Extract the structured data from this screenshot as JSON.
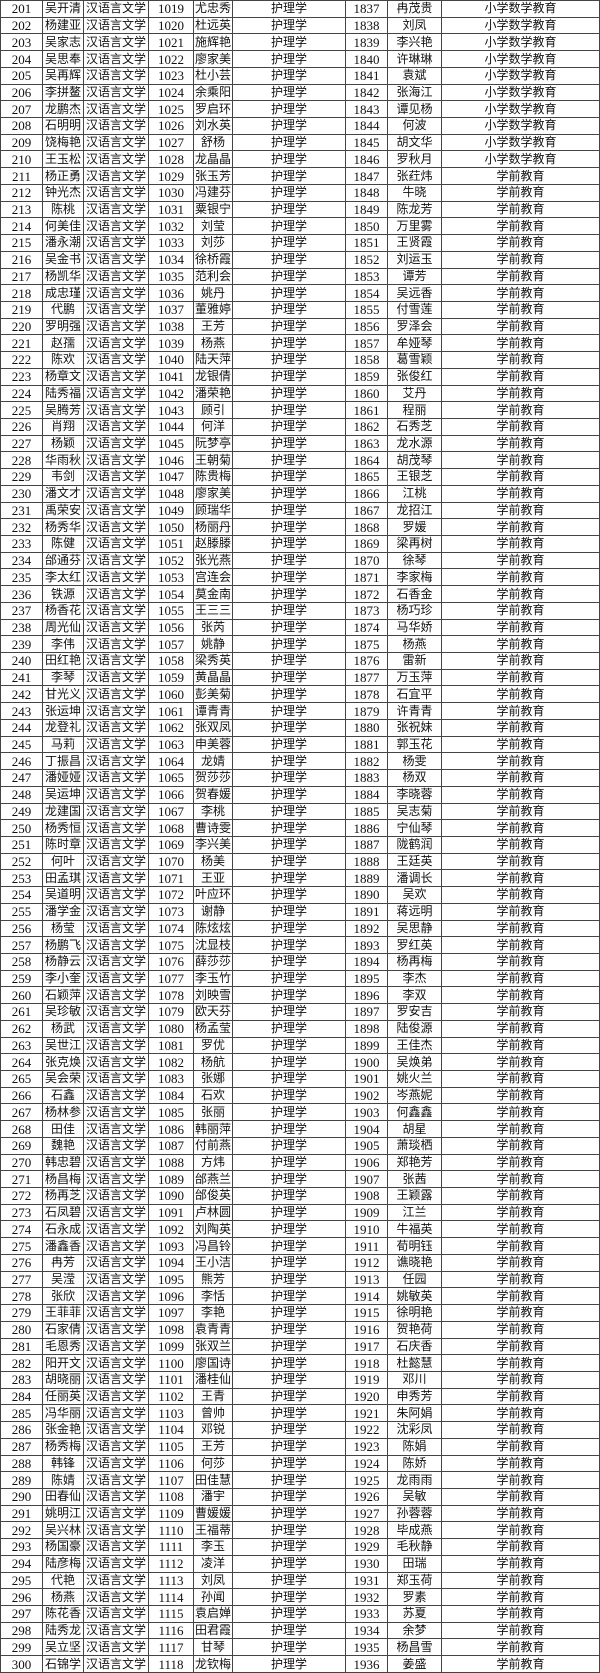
{
  "table": {
    "rows": [
      [
        "201",
        "吴开清",
        "汉语言文学",
        "1019",
        "尤忠秀",
        "护理学",
        "1837",
        "冉茂贵",
        "小学数学教育"
      ],
      [
        "202",
        "杨建亚",
        "汉语言文学",
        "1020",
        "杜远英",
        "护理学",
        "1838",
        "刘凤",
        "小学数学教育"
      ],
      [
        "203",
        "吴家志",
        "汉语言文学",
        "1021",
        "施辉艳",
        "护理学",
        "1839",
        "李兴艳",
        "小学数学教育"
      ],
      [
        "204",
        "吴思奉",
        "汉语言文学",
        "1022",
        "廖家美",
        "护理学",
        "1840",
        "许琳琳",
        "小学数学教育"
      ],
      [
        "205",
        "吴再辉",
        "汉语言文学",
        "1023",
        "杜小芸",
        "护理学",
        "1841",
        "袁斌",
        "小学数学教育"
      ],
      [
        "206",
        "李拼鳌",
        "汉语言文学",
        "1024",
        "余乘阳",
        "护理学",
        "1842",
        "张海江",
        "小学数学教育"
      ],
      [
        "207",
        "龙鹏杰",
        "汉语言文学",
        "1025",
        "罗启环",
        "护理学",
        "1843",
        "谭见杨",
        "小学数学教育"
      ],
      [
        "208",
        "石明明",
        "汉语言文学",
        "1026",
        "刘水英",
        "护理学",
        "1844",
        "何波",
        "小学数学教育"
      ],
      [
        "209",
        "饶梅艳",
        "汉语言文学",
        "1027",
        "舒杨",
        "护理学",
        "1845",
        "胡文华",
        "小学数学教育"
      ],
      [
        "210",
        "王玉松",
        "汉语言文学",
        "1028",
        "龙晶晶",
        "护理学",
        "1846",
        "罗秋月",
        "小学数学教育"
      ],
      [
        "211",
        "杨正勇",
        "汉语言文学",
        "1029",
        "张玉芳",
        "护理学",
        "1847",
        "张荭炜",
        "学前教育"
      ],
      [
        "212",
        "钟光杰",
        "汉语言文学",
        "1030",
        "冯建芬",
        "护理学",
        "1848",
        "牛晓",
        "学前教育"
      ],
      [
        "213",
        "陈桃",
        "汉语言文学",
        "1031",
        "粟银宁",
        "护理学",
        "1849",
        "陈龙芳",
        "学前教育"
      ],
      [
        "214",
        "何美佳",
        "汉语言文学",
        "1032",
        "刘莹",
        "护理学",
        "1850",
        "万里雾",
        "学前教育"
      ],
      [
        "215",
        "潘永潮",
        "汉语言文学",
        "1033",
        "刘莎",
        "护理学",
        "1851",
        "王贤霞",
        "学前教育"
      ],
      [
        "216",
        "吴金书",
        "汉语言文学",
        "1034",
        "徐桥霞",
        "护理学",
        "1852",
        "刘运玉",
        "学前教育"
      ],
      [
        "217",
        "杨凯华",
        "汉语言文学",
        "1035",
        "范利会",
        "护理学",
        "1853",
        "谭芳",
        "学前教育"
      ],
      [
        "218",
        "成忠瑾",
        "汉语言文学",
        "1036",
        "姚丹",
        "护理学",
        "1854",
        "吴远香",
        "学前教育"
      ],
      [
        "219",
        "代鹏",
        "汉语言文学",
        "1037",
        "董雅婷",
        "护理学",
        "1855",
        "付雪莲",
        "学前教育"
      ],
      [
        "220",
        "罗明强",
        "汉语言文学",
        "1038",
        "王芳",
        "护理学",
        "1856",
        "罗泽会",
        "学前教育"
      ],
      [
        "221",
        "赵孺",
        "汉语言文学",
        "1039",
        "杨燕",
        "护理学",
        "1857",
        "牟娅琴",
        "学前教育"
      ],
      [
        "222",
        "陈欢",
        "汉语言文学",
        "1040",
        "陆天萍",
        "护理学",
        "1858",
        "葛雪颖",
        "学前教育"
      ],
      [
        "223",
        "杨章文",
        "汉语言文学",
        "1041",
        "龙银倩",
        "护理学",
        "1859",
        "张俊红",
        "学前教育"
      ],
      [
        "224",
        "陆秀福",
        "汉语言文学",
        "1042",
        "潘荣艳",
        "护理学",
        "1860",
        "艾丹",
        "学前教育"
      ],
      [
        "225",
        "吴腾芳",
        "汉语言文学",
        "1043",
        "顾引",
        "护理学",
        "1861",
        "程丽",
        "学前教育"
      ],
      [
        "226",
        "肖翔",
        "汉语言文学",
        "1044",
        "何洋",
        "护理学",
        "1862",
        "石秀芝",
        "学前教育"
      ],
      [
        "227",
        "杨颖",
        "汉语言文学",
        "1045",
        "阮梦亭",
        "护理学",
        "1863",
        "龙水源",
        "学前教育"
      ],
      [
        "228",
        "华雨秋",
        "汉语言文学",
        "1046",
        "王朝菊",
        "护理学",
        "1864",
        "胡茂琴",
        "学前教育"
      ],
      [
        "229",
        "韦剑",
        "汉语言文学",
        "1047",
        "陈贵梅",
        "护理学",
        "1865",
        "王银芝",
        "学前教育"
      ],
      [
        "230",
        "潘文才",
        "汉语言文学",
        "1048",
        "廖家美",
        "护理学",
        "1866",
        "江桃",
        "学前教育"
      ],
      [
        "231",
        "禹荣安",
        "汉语言文学",
        "1049",
        "顾瑞华",
        "护理学",
        "1867",
        "龙招江",
        "学前教育"
      ],
      [
        "232",
        "杨秀华",
        "汉语言文学",
        "1050",
        "杨丽丹",
        "护理学",
        "1868",
        "罗媛",
        "学前教育"
      ],
      [
        "233",
        "陈健",
        "汉语言文学",
        "1051",
        "赵滕滕",
        "护理学",
        "1869",
        "梁再树",
        "学前教育"
      ],
      [
        "234",
        "邰通芬",
        "汉语言文学",
        "1052",
        "张光燕",
        "护理学",
        "1870",
        "徐琴",
        "学前教育"
      ],
      [
        "235",
        "李太红",
        "汉语言文学",
        "1053",
        "宫连会",
        "护理学",
        "1871",
        "李家梅",
        "学前教育"
      ],
      [
        "236",
        "铁源",
        "汉语言文学",
        "1054",
        "莫金南",
        "护理学",
        "1872",
        "石香金",
        "学前教育"
      ],
      [
        "237",
        "杨香花",
        "汉语言文学",
        "1055",
        "王三三",
        "护理学",
        "1873",
        "杨巧珍",
        "学前教育"
      ],
      [
        "238",
        "周光仙",
        "汉语言文学",
        "1056",
        "张芮",
        "护理学",
        "1874",
        "马华娇",
        "学前教育"
      ],
      [
        "239",
        "李伟",
        "汉语言文学",
        "1057",
        "姚静",
        "护理学",
        "1875",
        "杨燕",
        "学前教育"
      ],
      [
        "240",
        "田红艳",
        "汉语言文学",
        "1058",
        "梁秀英",
        "护理学",
        "1876",
        "雷新",
        "学前教育"
      ],
      [
        "241",
        "李琴",
        "汉语言文学",
        "1059",
        "黄晶晶",
        "护理学",
        "1877",
        "万玉萍",
        "学前教育"
      ],
      [
        "242",
        "甘光义",
        "汉语言文学",
        "1060",
        "彭美菊",
        "护理学",
        "1878",
        "石宜平",
        "学前教育"
      ],
      [
        "243",
        "张运坤",
        "汉语言文学",
        "1061",
        "谭青青",
        "护理学",
        "1879",
        "许青青",
        "学前教育"
      ],
      [
        "244",
        "龙登礼",
        "汉语言文学",
        "1062",
        "张双凤",
        "护理学",
        "1880",
        "张祝妹",
        "学前教育"
      ],
      [
        "245",
        "马莉",
        "汉语言文学",
        "1063",
        "申美蓉",
        "护理学",
        "1881",
        "郭玉花",
        "学前教育"
      ],
      [
        "246",
        "丁振昌",
        "汉语言文学",
        "1064",
        "龙婧",
        "护理学",
        "1882",
        "杨雯",
        "学前教育"
      ],
      [
        "247",
        "潘娅娅",
        "汉语言文学",
        "1065",
        "贺莎莎",
        "护理学",
        "1883",
        "杨双",
        "学前教育"
      ],
      [
        "248",
        "吴运坤",
        "汉语言文学",
        "1066",
        "贺春媛",
        "护理学",
        "1884",
        "李晓蓉",
        "学前教育"
      ],
      [
        "249",
        "龙建国",
        "汉语言文学",
        "1067",
        "李桃",
        "护理学",
        "1885",
        "吴志菊",
        "学前教育"
      ],
      [
        "250",
        "杨秀恒",
        "汉语言文学",
        "1068",
        "曹诗雯",
        "护理学",
        "1886",
        "宁仙琴",
        "学前教育"
      ],
      [
        "251",
        "陈时章",
        "汉语言文学",
        "1069",
        "李兴美",
        "护理学",
        "1887",
        "陇鹤润",
        "学前教育"
      ],
      [
        "252",
        "何叶",
        "汉语言文学",
        "1070",
        "杨美",
        "护理学",
        "1888",
        "王廷英",
        "学前教育"
      ],
      [
        "253",
        "田孟琪",
        "汉语言文学",
        "1071",
        "王亚",
        "护理学",
        "1889",
        "潘调长",
        "学前教育"
      ],
      [
        "254",
        "吴道明",
        "汉语言文学",
        "1072",
        "叶应环",
        "护理学",
        "1890",
        "吴欢",
        "学前教育"
      ],
      [
        "255",
        "潘学金",
        "汉语言文学",
        "1073",
        "谢静",
        "护理学",
        "1891",
        "蒋远明",
        "学前教育"
      ],
      [
        "256",
        "杨莹",
        "汉语言文学",
        "1074",
        "陈炫炫",
        "护理学",
        "1892",
        "吴思静",
        "学前教育"
      ],
      [
        "257",
        "杨鹏飞",
        "汉语言文学",
        "1075",
        "沈显枝",
        "护理学",
        "1893",
        "罗红英",
        "学前教育"
      ],
      [
        "258",
        "杨静云",
        "汉语言文学",
        "1076",
        "薛莎莎",
        "护理学",
        "1894",
        "杨再梅",
        "学前教育"
      ],
      [
        "259",
        "李小奎",
        "汉语言文学",
        "1077",
        "李玉竹",
        "护理学",
        "1895",
        "李杰",
        "学前教育"
      ],
      [
        "260",
        "石颖萍",
        "汉语言文学",
        "1078",
        "刘映雪",
        "护理学",
        "1896",
        "李双",
        "学前教育"
      ],
      [
        "261",
        "吴珍敏",
        "汉语言文学",
        "1079",
        "欧天芬",
        "护理学",
        "1897",
        "罗安吉",
        "学前教育"
      ],
      [
        "262",
        "杨武",
        "汉语言文学",
        "1080",
        "杨孟莹",
        "护理学",
        "1898",
        "陆俊源",
        "学前教育"
      ],
      [
        "263",
        "吴世江",
        "汉语言文学",
        "1081",
        "罗优",
        "护理学",
        "1899",
        "王佳杰",
        "学前教育"
      ],
      [
        "264",
        "张克焕",
        "汉语言文学",
        "1082",
        "杨航",
        "护理学",
        "1900",
        "吴焕弟",
        "学前教育"
      ],
      [
        "265",
        "吴会荣",
        "汉语言文学",
        "1083",
        "张娜",
        "护理学",
        "1901",
        "姚火兰",
        "学前教育"
      ],
      [
        "266",
        "石鑫",
        "汉语言文学",
        "1084",
        "石欢",
        "护理学",
        "1902",
        "岑燕妮",
        "学前教育"
      ],
      [
        "267",
        "杨林参",
        "汉语言文学",
        "1085",
        "张丽",
        "护理学",
        "1903",
        "何鑫鑫",
        "学前教育"
      ],
      [
        "268",
        "田佳",
        "汉语言文学",
        "1086",
        "韩丽萍",
        "护理学",
        "1904",
        "胡星",
        "学前教育"
      ],
      [
        "269",
        "魏艳",
        "汉语言文学",
        "1087",
        "付前燕",
        "护理学",
        "1905",
        "萧琰栖",
        "学前教育"
      ],
      [
        "270",
        "韩忠碧",
        "汉语言文学",
        "1088",
        "方炜",
        "护理学",
        "1906",
        "郑艳芳",
        "学前教育"
      ],
      [
        "271",
        "杨昌梅",
        "汉语言文学",
        "1089",
        "邰燕兰",
        "护理学",
        "1907",
        "张茜",
        "学前教育"
      ],
      [
        "272",
        "杨再芝",
        "汉语言文学",
        "1090",
        "邰俊英",
        "护理学",
        "1908",
        "王颖露",
        "学前教育"
      ],
      [
        "273",
        "石凤碧",
        "汉语言文学",
        "1091",
        "卢林圆",
        "护理学",
        "1909",
        "江兰",
        "学前教育"
      ],
      [
        "274",
        "石永成",
        "汉语言文学",
        "1092",
        "刘陶英",
        "护理学",
        "1910",
        "牛福英",
        "学前教育"
      ],
      [
        "275",
        "潘鑫香",
        "汉语言文学",
        "1093",
        "冯昌铃",
        "护理学",
        "1911",
        "荀明钰",
        "学前教育"
      ],
      [
        "276",
        "冉芳",
        "汉语言文学",
        "1094",
        "王小洁",
        "护理学",
        "1912",
        "谯晓艳",
        "学前教育"
      ],
      [
        "277",
        "吴滢",
        "汉语言文学",
        "1095",
        "熊芳",
        "护理学",
        "1913",
        "任园",
        "学前教育"
      ],
      [
        "278",
        "张欣",
        "汉语言文学",
        "1096",
        "李恬",
        "护理学",
        "1914",
        "姚敏英",
        "学前教育"
      ],
      [
        "279",
        "王菲菲",
        "汉语言文学",
        "1097",
        "李艳",
        "护理学",
        "1915",
        "徐明艳",
        "学前教育"
      ],
      [
        "280",
        "石家倩",
        "汉语言文学",
        "1098",
        "袁青青",
        "护理学",
        "1916",
        "贺艳荷",
        "学前教育"
      ],
      [
        "281",
        "毛恩秀",
        "汉语言文学",
        "1099",
        "张双兰",
        "护理学",
        "1917",
        "石庆香",
        "学前教育"
      ],
      [
        "282",
        "阳开文",
        "汉语言文学",
        "1100",
        "廖国诗",
        "护理学",
        "1918",
        "杜懿慧",
        "学前教育"
      ],
      [
        "283",
        "胡晓丽",
        "汉语言文学",
        "1101",
        "潘桂仙",
        "护理学",
        "1919",
        "邓川",
        "学前教育"
      ],
      [
        "284",
        "任丽英",
        "汉语言文学",
        "1102",
        "王青",
        "护理学",
        "1920",
        "申秀芳",
        "学前教育"
      ],
      [
        "285",
        "冯华丽",
        "汉语言文学",
        "1103",
        "曾帅",
        "护理学",
        "1921",
        "朱阿娟",
        "学前教育"
      ],
      [
        "286",
        "张金艳",
        "汉语言文学",
        "1104",
        "邓锐",
        "护理学",
        "1922",
        "沈彩凤",
        "学前教育"
      ],
      [
        "287",
        "杨秀梅",
        "汉语言文学",
        "1105",
        "王芳",
        "护理学",
        "1923",
        "陈娟",
        "学前教育"
      ],
      [
        "288",
        "韩锋",
        "汉语言文学",
        "1106",
        "何莎",
        "护理学",
        "1924",
        "陈娇",
        "学前教育"
      ],
      [
        "289",
        "陈婧",
        "汉语言文学",
        "1107",
        "田佳慧",
        "护理学",
        "1925",
        "龙雨雨",
        "学前教育"
      ],
      [
        "290",
        "田春仙",
        "汉语言文学",
        "1108",
        "潘宇",
        "护理学",
        "1926",
        "吴敏",
        "学前教育"
      ],
      [
        "291",
        "姚明江",
        "汉语言文学",
        "1109",
        "曹媛媛",
        "护理学",
        "1927",
        "孙蓉蓉",
        "学前教育"
      ],
      [
        "292",
        "吴兴林",
        "汉语言文学",
        "1110",
        "王福蒂",
        "护理学",
        "1928",
        "毕成燕",
        "学前教育"
      ],
      [
        "293",
        "杨国豪",
        "汉语言文学",
        "1111",
        "李玉",
        "护理学",
        "1929",
        "毛秋静",
        "学前教育"
      ],
      [
        "294",
        "陆彦梅",
        "汉语言文学",
        "1112",
        "凌洋",
        "护理学",
        "1930",
        "田瑞",
        "学前教育"
      ],
      [
        "295",
        "代艳",
        "汉语言文学",
        "1113",
        "刘凤",
        "护理学",
        "1931",
        "郑玉荷",
        "学前教育"
      ],
      [
        "296",
        "杨燕",
        "汉语言文学",
        "1114",
        "孙闻",
        "护理学",
        "1932",
        "罗素",
        "学前教育"
      ],
      [
        "297",
        "陈花香",
        "汉语言文学",
        "1115",
        "袁启婵",
        "护理学",
        "1933",
        "苏夏",
        "学前教育"
      ],
      [
        "298",
        "陆秀龙",
        "汉语言文学",
        "1116",
        "田君霞",
        "护理学",
        "1934",
        "余梦",
        "学前教育"
      ],
      [
        "299",
        "吴立坚",
        "汉语言文学",
        "1117",
        "甘琴",
        "护理学",
        "1935",
        "杨昌雪",
        "学前教育"
      ],
      [
        "300",
        "石锦学",
        "汉语言文学",
        "1118",
        "龙钦梅",
        "护理学",
        "1936",
        "姜盛",
        "学前教育"
      ]
    ]
  }
}
